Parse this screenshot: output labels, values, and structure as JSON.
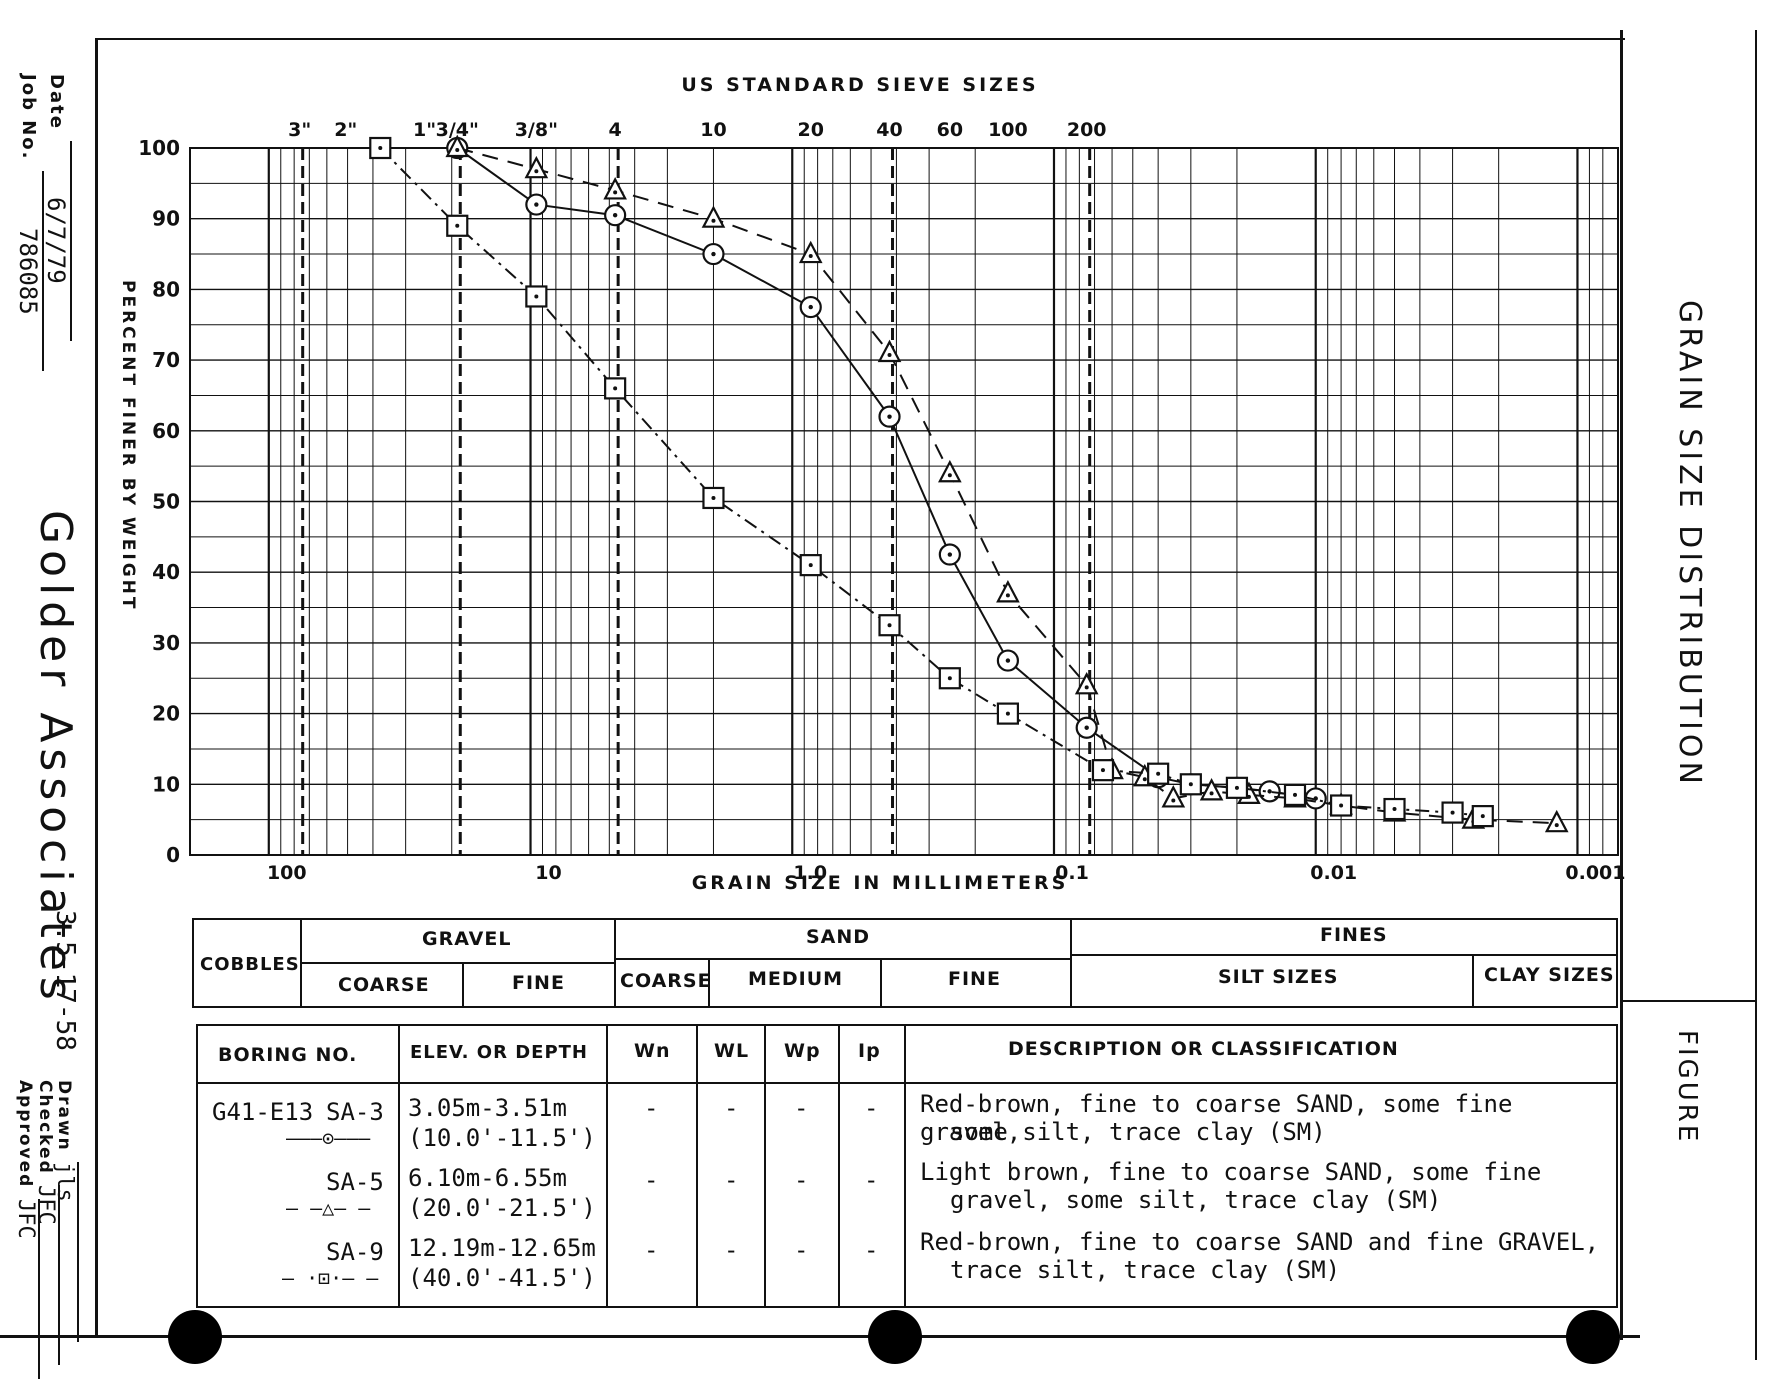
{
  "title_block": {
    "date_label": "Date",
    "date_value": "6/7/79",
    "job_label": "Job No.",
    "job_value": "786085",
    "company": "Golder Associates",
    "drawing_no": "3.5-17-58",
    "drawn_label": "Drawn",
    "drawn_value": "jls",
    "checked_label": "Checked",
    "checked_value": "JFC",
    "approved_label": "Approved",
    "approved_value": "JFC"
  },
  "right_panel": {
    "title": "GRAIN SIZE DISTRIBUTION",
    "figure_label": "FIGURE"
  },
  "chart_data": {
    "type": "line",
    "title": "US STANDARD SIEVE SIZES",
    "xlabel": "GRAIN SIZE IN MILLIMETERS",
    "ylabel": "PERCENT FINER BY WEIGHT",
    "x_scale": "log",
    "x_reversed": true,
    "xlim": [
      200,
      0.0007
    ],
    "ylim": [
      0,
      100
    ],
    "grid": true,
    "x_ticks": [
      {
        "value": 100,
        "label": "100"
      },
      {
        "value": 10,
        "label": "10"
      },
      {
        "value": 1,
        "label": "1.0"
      },
      {
        "value": 0.1,
        "label": "0.1"
      },
      {
        "value": 0.01,
        "label": "0.01"
      },
      {
        "value": 0.001,
        "label": "0.001"
      }
    ],
    "y_ticks": [
      0,
      10,
      20,
      30,
      40,
      50,
      60,
      70,
      80,
      90,
      100
    ],
    "sieves": [
      {
        "label": "3\"",
        "mm": 76.2
      },
      {
        "label": "2\"",
        "mm": 50.8
      },
      {
        "label": "1\"",
        "mm": 25.4
      },
      {
        "label": "3/4\"",
        "mm": 19.05
      },
      {
        "label": "3/8\"",
        "mm": 9.5
      },
      {
        "label": "4",
        "mm": 4.75
      },
      {
        "label": "10",
        "mm": 2.0
      },
      {
        "label": "20",
        "mm": 0.85
      },
      {
        "label": "40",
        "mm": 0.425
      },
      {
        "label": "60",
        "mm": 0.25
      },
      {
        "label": "100",
        "mm": 0.15
      },
      {
        "label": "200",
        "mm": 0.075
      }
    ],
    "dashed_sieves_mm": [
      76.2,
      19.05,
      4.75,
      0.425,
      0.075
    ],
    "series": [
      {
        "name": "SA-3",
        "marker": "circle",
        "line": "solid",
        "x": [
          19.05,
          9.5,
          4.75,
          2.0,
          0.85,
          0.425,
          0.25,
          0.15,
          0.075,
          0.04,
          0.03,
          0.02,
          0.015,
          0.01
        ],
        "y": [
          100,
          92,
          90.5,
          85,
          77.5,
          62,
          42.5,
          27.5,
          18,
          11,
          10,
          9.5,
          9,
          8
        ]
      },
      {
        "name": "SA-5",
        "marker": "triangle",
        "line": "dashed",
        "x": [
          19.05,
          9.5,
          4.75,
          2.0,
          0.85,
          0.425,
          0.25,
          0.15,
          0.075,
          0.06,
          0.045,
          0.035,
          0.025,
          0.018,
          0.012,
          0.008,
          0.005,
          0.0025,
          0.0012
        ],
        "y": [
          100,
          97,
          94,
          90,
          85,
          71,
          54,
          37,
          24,
          12,
          11,
          8,
          9,
          8.5,
          8,
          7,
          6,
          5,
          4.5
        ]
      },
      {
        "name": "SA-9",
        "marker": "square",
        "line": "dash-dot",
        "x": [
          37.5,
          19.05,
          9.5,
          4.75,
          2.0,
          0.85,
          0.425,
          0.25,
          0.15,
          0.065,
          0.04,
          0.03,
          0.02,
          0.012,
          0.008,
          0.005,
          0.003,
          0.0023
        ],
        "y": [
          100,
          89,
          79,
          66,
          50.5,
          41,
          32.5,
          25,
          20,
          12,
          11.5,
          10,
          9.5,
          8.5,
          7,
          6.5,
          6,
          5.5
        ]
      }
    ]
  },
  "classification_table": {
    "cobbles": "COBBLES",
    "gravel": "GRAVEL",
    "gravel_coarse": "COARSE",
    "gravel_fine": "FINE",
    "sand": "SAND",
    "sand_coarse": "COARSE",
    "sand_medium": "MEDIUM",
    "sand_fine": "FINE",
    "fines": "FINES",
    "silt_sizes": "SILT SIZES",
    "clay_sizes": "CLAY SIZES"
  },
  "sample_table": {
    "headers": {
      "boring": "BORING NO.",
      "elev": "ELEV. OR DEPTH",
      "wn": "Wn",
      "wl": "WL",
      "wp": "Wp",
      "ip": "Ip",
      "desc": "DESCRIPTION OR CLASSIFICATION"
    },
    "boring_id": "G41-E13",
    "rows": [
      {
        "sample": "SA-3",
        "legend": "———⊙———",
        "depth_m": "3.05m-3.51m",
        "depth_ft": "(10.0'-11.5')",
        "wn": "-",
        "wl": "-",
        "wp": "-",
        "ip": "-",
        "desc1": "Red-brown, fine to coarse SAND, some fine gravel,",
        "desc2": "some silt, trace clay (SM)"
      },
      {
        "sample": "SA-5",
        "legend": "— —△— —",
        "depth_m": "6.10m-6.55m",
        "depth_ft": "(20.0'-21.5')",
        "wn": "-",
        "wl": "-",
        "wp": "-",
        "ip": "-",
        "desc1": "Light brown, fine to coarse SAND, some fine",
        "desc2": "gravel, some silt, trace clay (SM)"
      },
      {
        "sample": "SA-9",
        "legend": "— ·⊡·— —",
        "depth_m": "12.19m-12.65m",
        "depth_ft": "(40.0'-41.5')",
        "wn": "-",
        "wl": "-",
        "wp": "-",
        "ip": "-",
        "desc1": "Red-brown, fine to coarse SAND and fine GRAVEL,",
        "desc2": "trace silt, trace clay (SM)"
      }
    ]
  }
}
